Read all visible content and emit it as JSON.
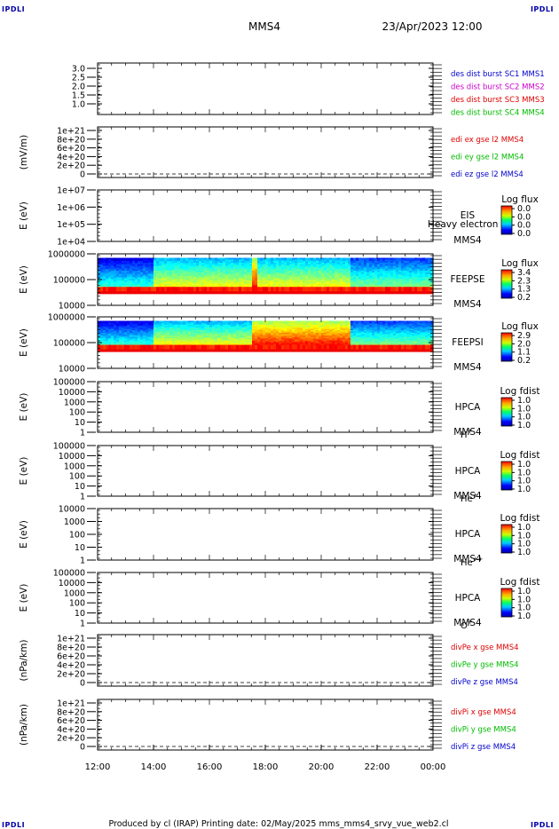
{
  "header": {
    "spacecraft": "MMS4",
    "datetime": "23/Apr/2023 12:00",
    "corner_mark": "IPDLI"
  },
  "footer": {
    "text": "Produced by cl (IRAP)    Printing date: 02/May/2025    mms_mms4_srvy_vue_web2.cl"
  },
  "time_axis": {
    "ticks": [
      "12:00",
      "14:00",
      "16:00",
      "18:00",
      "20:00",
      "22:00",
      "00:00"
    ],
    "range_hours": [
      12,
      24
    ]
  },
  "colors": {
    "blue": "#0000cc",
    "magenta": "#cc00cc",
    "red": "#dd0000",
    "green": "#00bb00"
  },
  "panels": [
    {
      "id": "des_dist",
      "ylabel": "",
      "yticks": [
        "3.0",
        "2.5",
        "2.0",
        "1.5",
        "1.0"
      ],
      "legend": [
        {
          "text": "des dist burst SC1 MMS1",
          "color": "#0000cc"
        },
        {
          "text": "des dist burst SC2 MMS2",
          "color": "#cc00cc"
        },
        {
          "text": "des dist burst SC3 MMS3",
          "color": "#dd0000"
        },
        {
          "text": "des dist burst SC4 MMS4",
          "color": "#00bb00"
        }
      ]
    },
    {
      "id": "edi",
      "ylabel": "(mV/m)",
      "yticks": [
        "1e+21",
        "8e+20",
        "6e+20",
        "4e+20",
        "2e+20",
        "0"
      ],
      "dashed_zero": true,
      "legend": [
        {
          "text": "edi ex gse l2 MMS4",
          "color": "#dd0000"
        },
        {
          "text": "edi ey gse l2 MMS4",
          "color": "#00bb00"
        },
        {
          "text": "edi ez gse l2 MMS4",
          "color": "#0000cc"
        }
      ]
    },
    {
      "id": "eis",
      "ylabel": "E (eV)",
      "yticks": [
        "1e+07",
        "1e+06",
        "1e+05",
        "1e+04"
      ],
      "instrument": [
        "EIS",
        "MMS4"
      ],
      "overlay": "Heavy electron to",
      "cbar_title": "Log flux",
      "cbar_ticks": [
        "0.0",
        "0.0",
        "0.0",
        "0.0"
      ]
    },
    {
      "id": "feepse",
      "ylabel": "E (eV)",
      "yticks": [
        "1000000",
        "100000",
        "10000"
      ],
      "instrument": [
        "FEEPSE",
        "MMS4"
      ],
      "cbar_title": "Log flux",
      "cbar_ticks": [
        "3.4",
        "2.3",
        "1.3",
        "0.2"
      ]
    },
    {
      "id": "feepsi",
      "ylabel": "E (eV)",
      "yticks": [
        "1000000",
        "100000",
        "10000"
      ],
      "instrument": [
        "FEEPSI",
        "MMS4"
      ],
      "cbar_title": "Log flux",
      "cbar_ticks": [
        "2.9",
        "2.0",
        "1.1",
        "0.2"
      ]
    },
    {
      "id": "hpca_h",
      "ylabel": "E (eV)",
      "yticks": [
        "100000",
        "10000",
        "1000",
        "100",
        "10",
        "1"
      ],
      "instrument": [
        "HPCA",
        "MMS4"
      ],
      "species": "H",
      "charge": "+",
      "cbar_title": "Log fdist",
      "cbar_ticks": [
        "1.0",
        "1.0",
        "1.0",
        "1.0"
      ]
    },
    {
      "id": "hpca_he",
      "ylabel": "E (eV)",
      "yticks": [
        "100000",
        "10000",
        "1000",
        "100",
        "10",
        "1"
      ],
      "instrument": [
        "HPCA",
        "MMS4"
      ],
      "species": "He",
      "charge": "+",
      "cbar_title": "Log fdist",
      "cbar_ticks": [
        "1.0",
        "1.0",
        "1.0",
        "1.0"
      ]
    },
    {
      "id": "hpca_hepp",
      "ylabel": "E (eV)",
      "yticks": [
        "10000",
        "1000",
        "100",
        "10",
        "1"
      ],
      "instrument": [
        "HPCA",
        "MMS4"
      ],
      "species": "He",
      "charge": "++",
      "cbar_title": "Log fdist",
      "cbar_ticks": [
        "1.0",
        "1.0",
        "1.0",
        "1.0"
      ]
    },
    {
      "id": "hpca_o",
      "ylabel": "E (eV)",
      "yticks": [
        "100000",
        "10000",
        "1000",
        "100",
        "10",
        "1"
      ],
      "instrument": [
        "HPCA",
        "MMS4"
      ],
      "species": "O",
      "charge": "+",
      "cbar_title": "Log fdist",
      "cbar_ticks": [
        "1.0",
        "1.0",
        "1.0",
        "1.0"
      ]
    },
    {
      "id": "divpe",
      "ylabel": "(nPa/km)",
      "yticks": [
        "1e+21",
        "8e+20",
        "6e+20",
        "4e+20",
        "2e+20",
        "0"
      ],
      "dashed_zero": true,
      "legend": [
        {
          "text": "divPe x gse MMS4",
          "color": "#dd0000"
        },
        {
          "text": "divPe y gse MMS4",
          "color": "#00bb00"
        },
        {
          "text": "divPe z gse MMS4",
          "color": "#0000cc"
        }
      ]
    },
    {
      "id": "divpi",
      "ylabel": "(nPa/km)",
      "yticks": [
        "1e+21",
        "8e+20",
        "6e+20",
        "4e+20",
        "2e+20",
        "0"
      ],
      "dashed_zero": true,
      "legend": [
        {
          "text": "divPi x gse MMS4",
          "color": "#dd0000"
        },
        {
          "text": "divPi y gse MMS4",
          "color": "#00bb00"
        },
        {
          "text": "divPi z gse MMS4",
          "color": "#0000cc"
        }
      ]
    }
  ],
  "chart_data": {
    "type": "heatmap",
    "x_unit": "UT hours",
    "xlim": [
      12,
      24
    ],
    "spectrograms": [
      {
        "panel": "feepse",
        "ylim_eV": [
          10000,
          1000000
        ],
        "cbar_range": [
          0.2,
          3.4
        ],
        "energy_band_eV": [
          40000,
          700000
        ],
        "features": [
          {
            "time_range": [
              12.0,
              14.0
            ],
            "level": "low",
            "note": "blue"
          },
          {
            "time_range": [
              14.0,
              17.5
            ],
            "level": "medium",
            "note": "cyan-green"
          },
          {
            "time_range": [
              17.5,
              17.7
            ],
            "level": "high",
            "note": "yellow streak"
          },
          {
            "time_range": [
              17.7,
              21.0
            ],
            "level": "medium",
            "note": "green"
          },
          {
            "time_range": [
              21.0,
              24.0
            ],
            "level": "medium-low",
            "note": "cyan-blue"
          }
        ],
        "low_energy_edge": {
          "energy_eV": 35000,
          "level": "max"
        }
      },
      {
        "panel": "feepsi",
        "ylim_eV": [
          10000,
          1000000
        ],
        "cbar_range": [
          0.2,
          2.9
        ],
        "energy_band_eV": [
          50000,
          700000
        ],
        "features": [
          {
            "time_range": [
              12.0,
              14.0
            ],
            "level": "low",
            "note": "blue"
          },
          {
            "time_range": [
              14.0,
              17.5
            ],
            "level": "medium",
            "note": "green-yellow lower"
          },
          {
            "time_range": [
              17.5,
              17.7
            ],
            "level": "high",
            "note": "yellow-red streak"
          },
          {
            "time_range": [
              17.7,
              21.0
            ],
            "level": "high",
            "note": "orange lower band"
          },
          {
            "time_range": [
              21.0,
              24.0
            ],
            "level": "medium-low",
            "note": "cyan-blue"
          }
        ],
        "low_energy_edge": {
          "energy_eV": 55000,
          "level": "max"
        }
      }
    ],
    "series": []
  }
}
